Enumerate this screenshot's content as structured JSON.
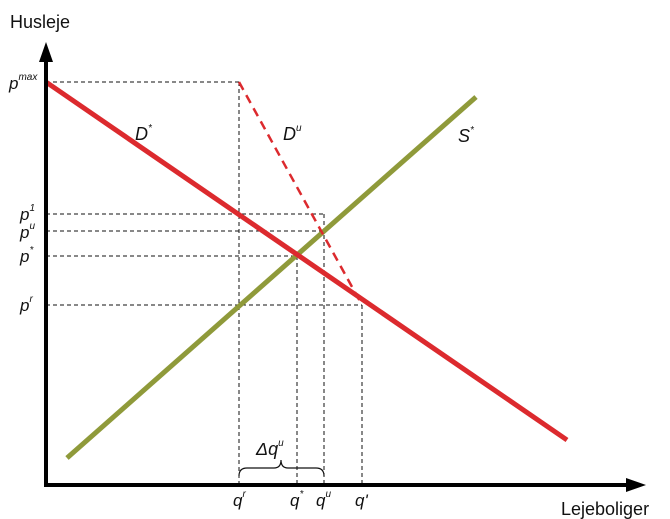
{
  "axes": {
    "y_title": "Husleje",
    "x_title": "Lejeboliger"
  },
  "price_labels": {
    "pmax": {
      "base": "p",
      "sup": "max"
    },
    "p1": {
      "base": "p",
      "sup": "1"
    },
    "pu": {
      "base": "p",
      "sup": "u"
    },
    "pstar": {
      "base": "p",
      "sup": "*"
    },
    "pr": {
      "base": "p",
      "sup": "r"
    }
  },
  "quantity_labels": {
    "qr": {
      "base": "q",
      "sup": "r"
    },
    "qstar": {
      "base": "q",
      "sup": "*"
    },
    "qu": {
      "base": "q",
      "sup": "u"
    },
    "qprime": {
      "base": "q'",
      "sup": ""
    }
  },
  "curve_labels": {
    "dstar": {
      "base": "D",
      "sup": "*"
    },
    "du": {
      "base": "D",
      "sup": "u"
    },
    "sstar": {
      "base": "S",
      "sup": "*"
    }
  },
  "bracket_label": {
    "base": "Δq",
    "sup": "u"
  },
  "colors": {
    "demand": "#dc2a2e",
    "supply": "#8f9a3a",
    "axis": "#000000",
    "guides": "#111111"
  }
}
